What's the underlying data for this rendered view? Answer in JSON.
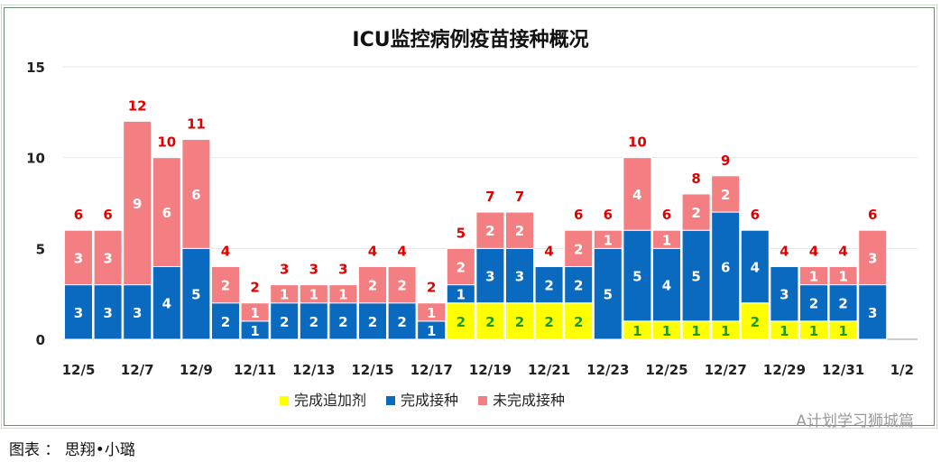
{
  "chart_data": {
    "type": "bar",
    "stacked": true,
    "title": "ICU监控病例疫苗接种概况",
    "categories": [
      "12/5",
      "12/6",
      "12/7",
      "12/8",
      "12/9",
      "12/10",
      "12/11",
      "12/12",
      "12/13",
      "12/14",
      "12/15",
      "12/16",
      "12/17",
      "12/18",
      "12/19",
      "12/20",
      "12/21",
      "12/22",
      "12/23",
      "12/24",
      "12/25",
      "12/26",
      "12/27",
      "12/28",
      "12/29",
      "12/30",
      "12/31",
      "1/1"
    ],
    "x_tick_labels": [
      "12/5",
      "12/7",
      "12/9",
      "12/11",
      "12/13",
      "12/15",
      "12/17",
      "12/19",
      "12/21",
      "12/23",
      "12/25",
      "12/27",
      "12/29",
      "12/31",
      "1/2"
    ],
    "y_ticks": [
      0,
      5,
      10,
      15
    ],
    "ylim": [
      0,
      15
    ],
    "grid": true,
    "legend_position": "bottom",
    "series": [
      {
        "name": "完成追加剂",
        "color": "#ffff00",
        "label_color": "#1a9c1a",
        "values": [
          0,
          0,
          0,
          0,
          0,
          0,
          0,
          0,
          0,
          0,
          0,
          0,
          0,
          2,
          2,
          2,
          2,
          2,
          0,
          1,
          1,
          1,
          1,
          2,
          1,
          1,
          1,
          0
        ]
      },
      {
        "name": "完成接种",
        "color": "#0a6abf",
        "label_color": "#ffffff",
        "values": [
          3,
          3,
          3,
          4,
          5,
          2,
          1,
          2,
          2,
          2,
          2,
          2,
          1,
          1,
          3,
          3,
          2,
          2,
          5,
          5,
          4,
          5,
          6,
          4,
          3,
          2,
          2,
          3
        ]
      },
      {
        "name": "未完成接种",
        "color": "#f47f82",
        "label_color": "#ffffff",
        "values": [
          3,
          3,
          9,
          6,
          6,
          2,
          1,
          1,
          1,
          1,
          2,
          2,
          1,
          2,
          2,
          2,
          0,
          2,
          1,
          4,
          1,
          2,
          2,
          0,
          0,
          1,
          1,
          3
        ]
      }
    ],
    "totals": [
      6,
      6,
      12,
      10,
      11,
      4,
      2,
      3,
      3,
      3,
      4,
      4,
      2,
      5,
      7,
      7,
      4,
      6,
      6,
      10,
      6,
      8,
      9,
      6,
      4,
      4,
      4,
      6
    ],
    "total_label_color": "#e00000"
  },
  "watermark": "A计划学习狮城篇",
  "footer": "图表 ： 思翔•小璐"
}
